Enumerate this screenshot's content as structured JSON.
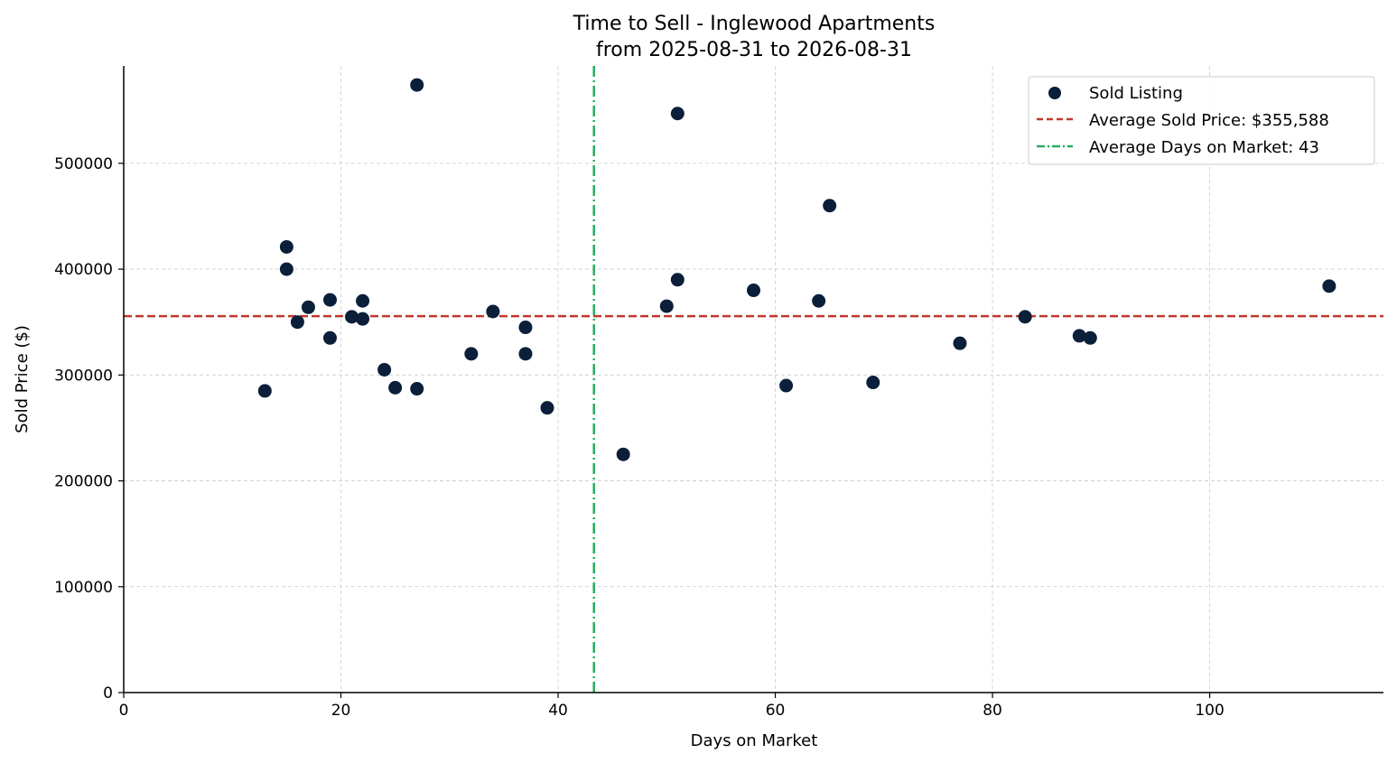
{
  "chart_data": {
    "type": "scatter",
    "title": "Time to Sell - Inglewood Apartments",
    "subtitle": "from 2025-08-31 to 2026-08-31",
    "xlabel": "Days on Market",
    "ylabel": "Sold Price ($)",
    "xlim": [
      0,
      116
    ],
    "ylim": [
      0,
      592000
    ],
    "x_ticks": [
      0,
      20,
      40,
      60,
      80,
      100
    ],
    "y_ticks": [
      0,
      100000,
      200000,
      300000,
      400000,
      500000
    ],
    "grid": true,
    "legend_position": "top-right",
    "colors": {
      "points": "#0b1f3a",
      "avg_price_line": "#c0392b",
      "avg_days_line": "#27ae60",
      "grid": "#cccccc",
      "axis": "#000000"
    },
    "series": [
      {
        "name": "Sold Listing",
        "points": [
          {
            "x": 13,
            "y": 285000
          },
          {
            "x": 15,
            "y": 421000
          },
          {
            "x": 15,
            "y": 400000
          },
          {
            "x": 16,
            "y": 350000
          },
          {
            "x": 17,
            "y": 364000
          },
          {
            "x": 19,
            "y": 371000
          },
          {
            "x": 19,
            "y": 335000
          },
          {
            "x": 21,
            "y": 355000
          },
          {
            "x": 22,
            "y": 370000
          },
          {
            "x": 22,
            "y": 353000
          },
          {
            "x": 24,
            "y": 305000
          },
          {
            "x": 25,
            "y": 288000
          },
          {
            "x": 27,
            "y": 574000
          },
          {
            "x": 27,
            "y": 287000
          },
          {
            "x": 32,
            "y": 320000
          },
          {
            "x": 34,
            "y": 360000
          },
          {
            "x": 37,
            "y": 345000
          },
          {
            "x": 37,
            "y": 320000
          },
          {
            "x": 39,
            "y": 269000
          },
          {
            "x": 46,
            "y": 225000
          },
          {
            "x": 50,
            "y": 365000
          },
          {
            "x": 51,
            "y": 547000
          },
          {
            "x": 51,
            "y": 390000
          },
          {
            "x": 58,
            "y": 380000
          },
          {
            "x": 61,
            "y": 290000
          },
          {
            "x": 64,
            "y": 370000
          },
          {
            "x": 65,
            "y": 460000
          },
          {
            "x": 69,
            "y": 293000
          },
          {
            "x": 77,
            "y": 330000
          },
          {
            "x": 83,
            "y": 355000
          },
          {
            "x": 88,
            "y": 337000
          },
          {
            "x": 89,
            "y": 335000
          },
          {
            "x": 111,
            "y": 384000
          }
        ]
      }
    ],
    "reference_lines": [
      {
        "name": "Average Sold Price: $355,588",
        "orientation": "horizontal",
        "value": 355588,
        "style": "dashed"
      },
      {
        "name": "Average Days on Market: 43",
        "orientation": "vertical",
        "value": 43.3,
        "style": "dash-dot"
      }
    ],
    "legend": [
      {
        "label": "Sold Listing",
        "kind": "marker"
      },
      {
        "label": "Average Sold Price: $355,588",
        "kind": "dashed"
      },
      {
        "label": "Average Days on Market: 43",
        "kind": "dash-dot"
      }
    ]
  }
}
